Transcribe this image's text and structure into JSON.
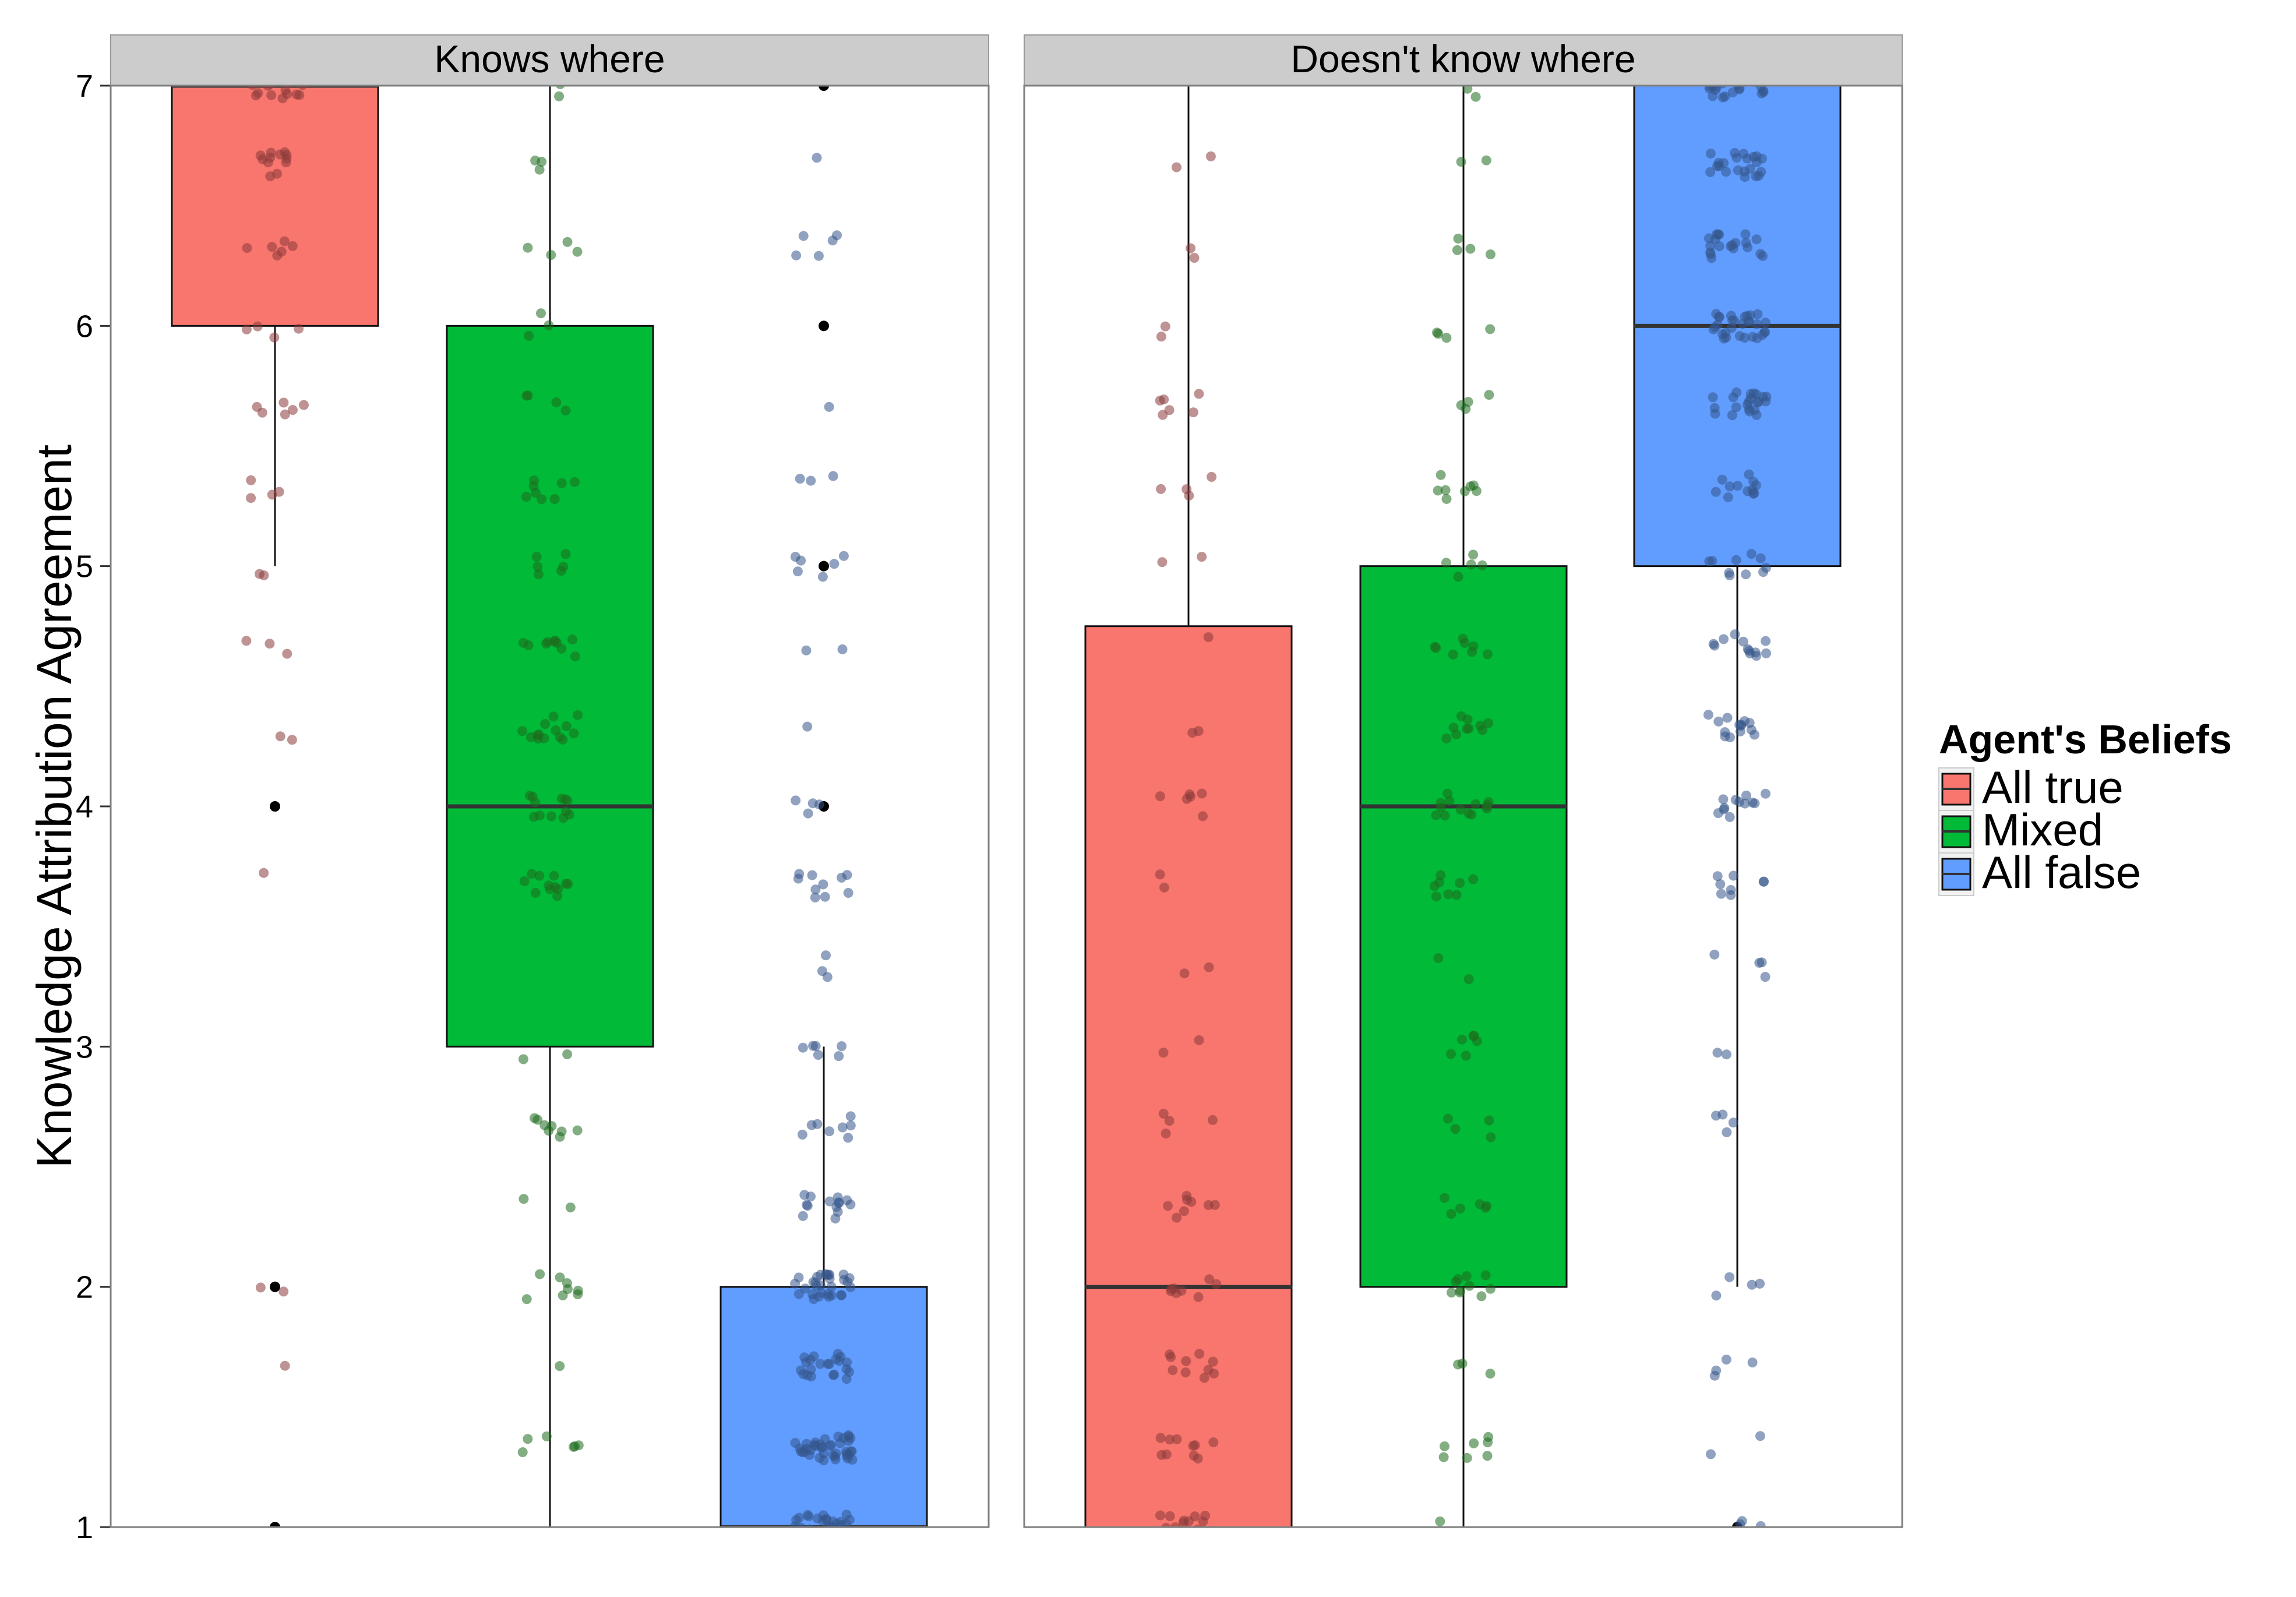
{
  "chart_data": {
    "type": "boxplot",
    "ylabel": "Knowledge Attribution Agreement",
    "ylim": [
      1,
      7
    ],
    "y_ticks": [
      "1",
      "2",
      "3",
      "4",
      "5",
      "6",
      "7"
    ],
    "grid": false,
    "legend": {
      "title": "Agent's Beliefs",
      "placement": "right",
      "entries": [
        {
          "name": "All true",
          "color": "#F8766D"
        },
        {
          "name": "Mixed",
          "color": "#00BA38"
        },
        {
          "name": "All false",
          "color": "#619CFF"
        }
      ]
    },
    "point_colors": {
      "All true": "#8B3A3A",
      "Mixed": "#1E6B1E",
      "All false": "#34558B"
    },
    "panels": [
      {
        "title": "Knows where",
        "boxes": [
          {
            "group": "All true",
            "lower_whisker": 5,
            "q1": 6,
            "median": 7,
            "q3": 7,
            "upper_whisker": 7,
            "outliers": [
              4,
              2,
              1
            ]
          },
          {
            "group": "Mixed",
            "lower_whisker": 1,
            "q1": 3,
            "median": 4,
            "q3": 6,
            "upper_whisker": 7,
            "outliers": []
          },
          {
            "group": "All false",
            "lower_whisker": 1,
            "q1": 1,
            "median": 1,
            "q3": 2,
            "upper_whisker": 3,
            "outliers": [
              7,
              6,
              5,
              4
            ]
          }
        ]
      },
      {
        "title": "Doesn't know where",
        "boxes": [
          {
            "group": "All true",
            "lower_whisker": 1,
            "q1": 1,
            "median": 2,
            "q3": 4.75,
            "upper_whisker": 7,
            "outliers": []
          },
          {
            "group": "Mixed",
            "lower_whisker": 1,
            "q1": 2,
            "median": 4,
            "q3": 5,
            "upper_whisker": 7,
            "outliers": []
          },
          {
            "group": "All false",
            "lower_whisker": 2,
            "q1": 5,
            "median": 6,
            "q3": 7,
            "upper_whisker": 7,
            "outliers": [
              1
            ]
          }
        ]
      }
    ],
    "jitter_points": [
      {
        "panel": "Knows where",
        "All true": [
          {
            "value": 7,
            "count": 22
          },
          {
            "value": 6.67,
            "count": 12
          },
          {
            "value": 6.33,
            "count": 6
          },
          {
            "value": 6,
            "count": 4
          },
          {
            "value": 5.67,
            "count": 6
          },
          {
            "value": 5.33,
            "count": 4
          },
          {
            "value": 5,
            "count": 2
          },
          {
            "value": 4.67,
            "count": 3
          },
          {
            "value": 4.33,
            "count": 2
          },
          {
            "value": 3.67,
            "count": 1
          },
          {
            "value": 2,
            "count": 2
          },
          {
            "value": 1.67,
            "count": 1
          }
        ],
        "Mixed": [
          {
            "value": 7,
            "count": 4
          },
          {
            "value": 6.67,
            "count": 3
          },
          {
            "value": 6.33,
            "count": 4
          },
          {
            "value": 6,
            "count": 3
          },
          {
            "value": 5.67,
            "count": 4
          },
          {
            "value": 5.33,
            "count": 8
          },
          {
            "value": 5,
            "count": 6
          },
          {
            "value": 4.67,
            "count": 10
          },
          {
            "value": 4.33,
            "count": 14
          },
          {
            "value": 4,
            "count": 12
          },
          {
            "value": 3.67,
            "count": 12
          },
          {
            "value": 3,
            "count": 2
          },
          {
            "value": 2.67,
            "count": 8
          },
          {
            "value": 2.33,
            "count": 2
          },
          {
            "value": 2,
            "count": 8
          },
          {
            "value": 1.67,
            "count": 1
          },
          {
            "value": 1.33,
            "count": 6
          },
          {
            "value": 1,
            "count": 2
          }
        ],
        "All false": [
          {
            "value": 6.67,
            "count": 1
          },
          {
            "value": 6.33,
            "count": 5
          },
          {
            "value": 5.67,
            "count": 1
          },
          {
            "value": 5.33,
            "count": 3
          },
          {
            "value": 5,
            "count": 6
          },
          {
            "value": 4.67,
            "count": 2
          },
          {
            "value": 4.33,
            "count": 1
          },
          {
            "value": 4,
            "count": 4
          },
          {
            "value": 3.67,
            "count": 10
          },
          {
            "value": 3.33,
            "count": 3
          },
          {
            "value": 3,
            "count": 6
          },
          {
            "value": 2.67,
            "count": 8
          },
          {
            "value": 2.33,
            "count": 14
          },
          {
            "value": 2,
            "count": 30
          },
          {
            "value": 1.67,
            "count": 22
          },
          {
            "value": 1.33,
            "count": 40
          },
          {
            "value": 1,
            "count": 34
          }
        ]
      },
      {
        "panel": "Doesn't know where",
        "All true": [
          {
            "value": 7,
            "count": 1
          },
          {
            "value": 6.67,
            "count": 2
          },
          {
            "value": 6.33,
            "count": 2
          },
          {
            "value": 6,
            "count": 2
          },
          {
            "value": 5.67,
            "count": 6
          },
          {
            "value": 5.33,
            "count": 4
          },
          {
            "value": 5,
            "count": 2
          },
          {
            "value": 4.67,
            "count": 1
          },
          {
            "value": 4.33,
            "count": 2
          },
          {
            "value": 4,
            "count": 6
          },
          {
            "value": 3.67,
            "count": 2
          },
          {
            "value": 3.33,
            "count": 2
          },
          {
            "value": 3,
            "count": 2
          },
          {
            "value": 2.67,
            "count": 4
          },
          {
            "value": 2.33,
            "count": 8
          },
          {
            "value": 2,
            "count": 8
          },
          {
            "value": 1.67,
            "count": 10
          },
          {
            "value": 1.33,
            "count": 10
          },
          {
            "value": 1,
            "count": 18
          }
        ],
        "Mixed": [
          {
            "value": 7,
            "count": 4
          },
          {
            "value": 6.67,
            "count": 2
          },
          {
            "value": 6.33,
            "count": 4
          },
          {
            "value": 6,
            "count": 4
          },
          {
            "value": 5.67,
            "count": 4
          },
          {
            "value": 5.33,
            "count": 8
          },
          {
            "value": 5,
            "count": 5
          },
          {
            "value": 4.67,
            "count": 8
          },
          {
            "value": 4.33,
            "count": 10
          },
          {
            "value": 4,
            "count": 14
          },
          {
            "value": 3.67,
            "count": 8
          },
          {
            "value": 3.33,
            "count": 2
          },
          {
            "value": 3,
            "count": 6
          },
          {
            "value": 2.67,
            "count": 4
          },
          {
            "value": 2.33,
            "count": 6
          },
          {
            "value": 2,
            "count": 10
          },
          {
            "value": 1.67,
            "count": 3
          },
          {
            "value": 1.33,
            "count": 7
          },
          {
            "value": 1,
            "count": 1
          }
        ],
        "All false": [
          {
            "value": 7,
            "count": 32
          },
          {
            "value": 6.67,
            "count": 22
          },
          {
            "value": 6.33,
            "count": 20
          },
          {
            "value": 6,
            "count": 30
          },
          {
            "value": 5.67,
            "count": 22
          },
          {
            "value": 5.33,
            "count": 12
          },
          {
            "value": 5,
            "count": 10
          },
          {
            "value": 4.67,
            "count": 12
          },
          {
            "value": 4.33,
            "count": 14
          },
          {
            "value": 4,
            "count": 12
          },
          {
            "value": 3.67,
            "count": 8
          },
          {
            "value": 3.33,
            "count": 4
          },
          {
            "value": 3,
            "count": 2
          },
          {
            "value": 2.67,
            "count": 4
          },
          {
            "value": 2,
            "count": 4
          },
          {
            "value": 1.67,
            "count": 4
          },
          {
            "value": 1.33,
            "count": 2
          },
          {
            "value": 1,
            "count": 3
          }
        ]
      }
    ]
  }
}
